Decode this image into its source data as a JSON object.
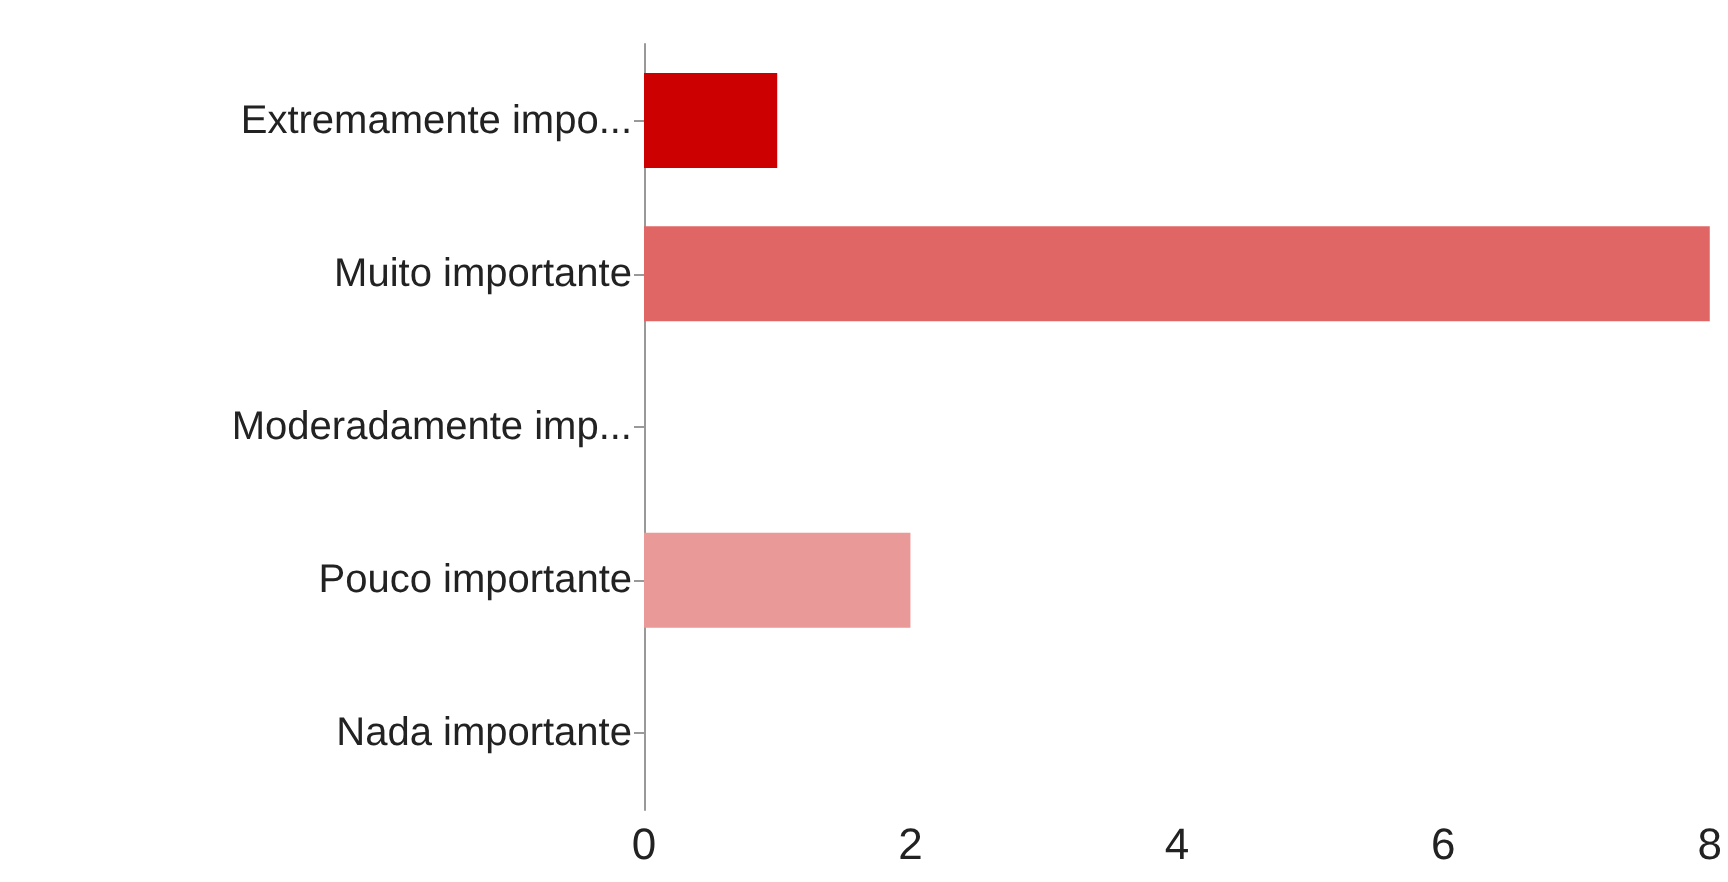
{
  "chart_data": {
    "type": "bar",
    "orientation": "horizontal",
    "categories": [
      "Extremamente impo...",
      "Muito importante",
      "Moderadamente imp...",
      "Pouco importante",
      "Nada importante"
    ],
    "values": [
      1,
      8,
      0,
      2,
      0
    ],
    "colors": [
      "#cc0000",
      "#e06666",
      "#e47c7c",
      "#ea9999",
      "#f4c7c7"
    ],
    "xlim": [
      0,
      8
    ],
    "xticks": [
      0,
      2,
      4,
      6,
      8
    ],
    "grid": false
  }
}
